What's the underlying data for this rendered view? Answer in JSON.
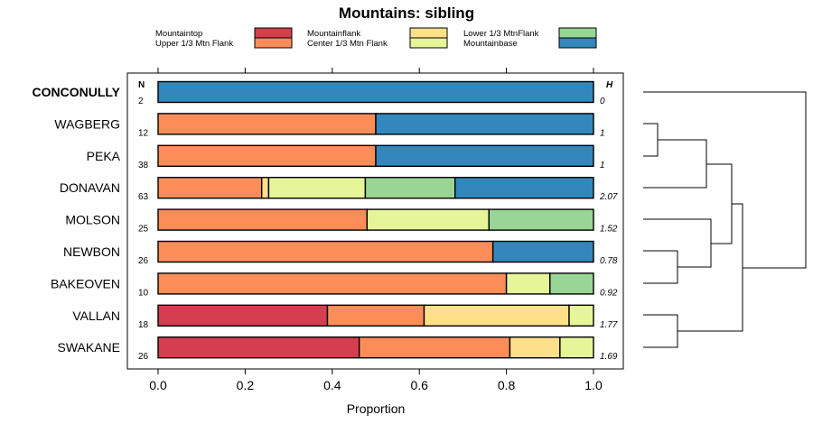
{
  "chart_data": {
    "type": "bar",
    "orientation": "horizontal",
    "stacked": true,
    "title": "Mountains: sibling",
    "xlabel": "Proportion",
    "ylabel": "",
    "xlim": [
      0,
      1
    ],
    "xticks": [
      0,
      0.2,
      0.4,
      0.6,
      0.8,
      1
    ],
    "xtick_labels": [
      "0.0",
      "0.2",
      "0.4",
      "0.6",
      "0.8",
      "1.0"
    ],
    "n_header": "N",
    "h_header": "H",
    "legend": [
      {
        "name": "Mountaintop",
        "color": "#d53e4f"
      },
      {
        "name": "Upper 1/3 Mtn Flank",
        "color": "#fc8d59"
      },
      {
        "name": "Mountainflank",
        "color": "#fee08b"
      },
      {
        "name": "Center 1/3 Mtn Flank",
        "color": "#e6f598"
      },
      {
        "name": "Lower 1/3 MtnFlank",
        "color": "#99d594"
      },
      {
        "name": "Mountainbase",
        "color": "#3288bd"
      }
    ],
    "categories": [
      {
        "name": "CONCONULLY",
        "bold": true,
        "n": "2",
        "h": "0",
        "values": [
          0,
          0,
          0,
          0,
          0,
          1
        ]
      },
      {
        "name": "WAGBERG",
        "bold": false,
        "n": "12",
        "h": "1",
        "values": [
          0,
          0.5,
          0,
          0,
          0,
          0.5
        ]
      },
      {
        "name": "PEKA",
        "bold": false,
        "n": "38",
        "h": "1",
        "values": [
          0,
          0.5,
          0,
          0,
          0,
          0.5
        ]
      },
      {
        "name": "DONAVAN",
        "bold": false,
        "n": "63",
        "h": "2.07",
        "values": [
          0,
          0.238,
          0.016,
          0.222,
          0.206,
          0.318
        ]
      },
      {
        "name": "MOLSON",
        "bold": false,
        "n": "25",
        "h": "1.52",
        "values": [
          0,
          0.48,
          0,
          0.28,
          0.24,
          0
        ]
      },
      {
        "name": "NEWBON",
        "bold": false,
        "n": "26",
        "h": "0.78",
        "values": [
          0,
          0.769,
          0,
          0,
          0,
          0.231
        ]
      },
      {
        "name": "BAKEOVEN",
        "bold": false,
        "n": "10",
        "h": "0.92",
        "values": [
          0,
          0.8,
          0,
          0.1,
          0.1,
          0
        ]
      },
      {
        "name": "VALLAN",
        "bold": false,
        "n": "18",
        "h": "1.77",
        "values": [
          0.389,
          0.222,
          0.333,
          0.056,
          0,
          0
        ]
      },
      {
        "name": "SWAKANE",
        "bold": false,
        "n": "26",
        "h": "1.69",
        "values": [
          0.462,
          0.346,
          0.115,
          0.077,
          0,
          0
        ]
      }
    ],
    "dendrogram": "hierarchical clustering of the 9 mountains"
  }
}
